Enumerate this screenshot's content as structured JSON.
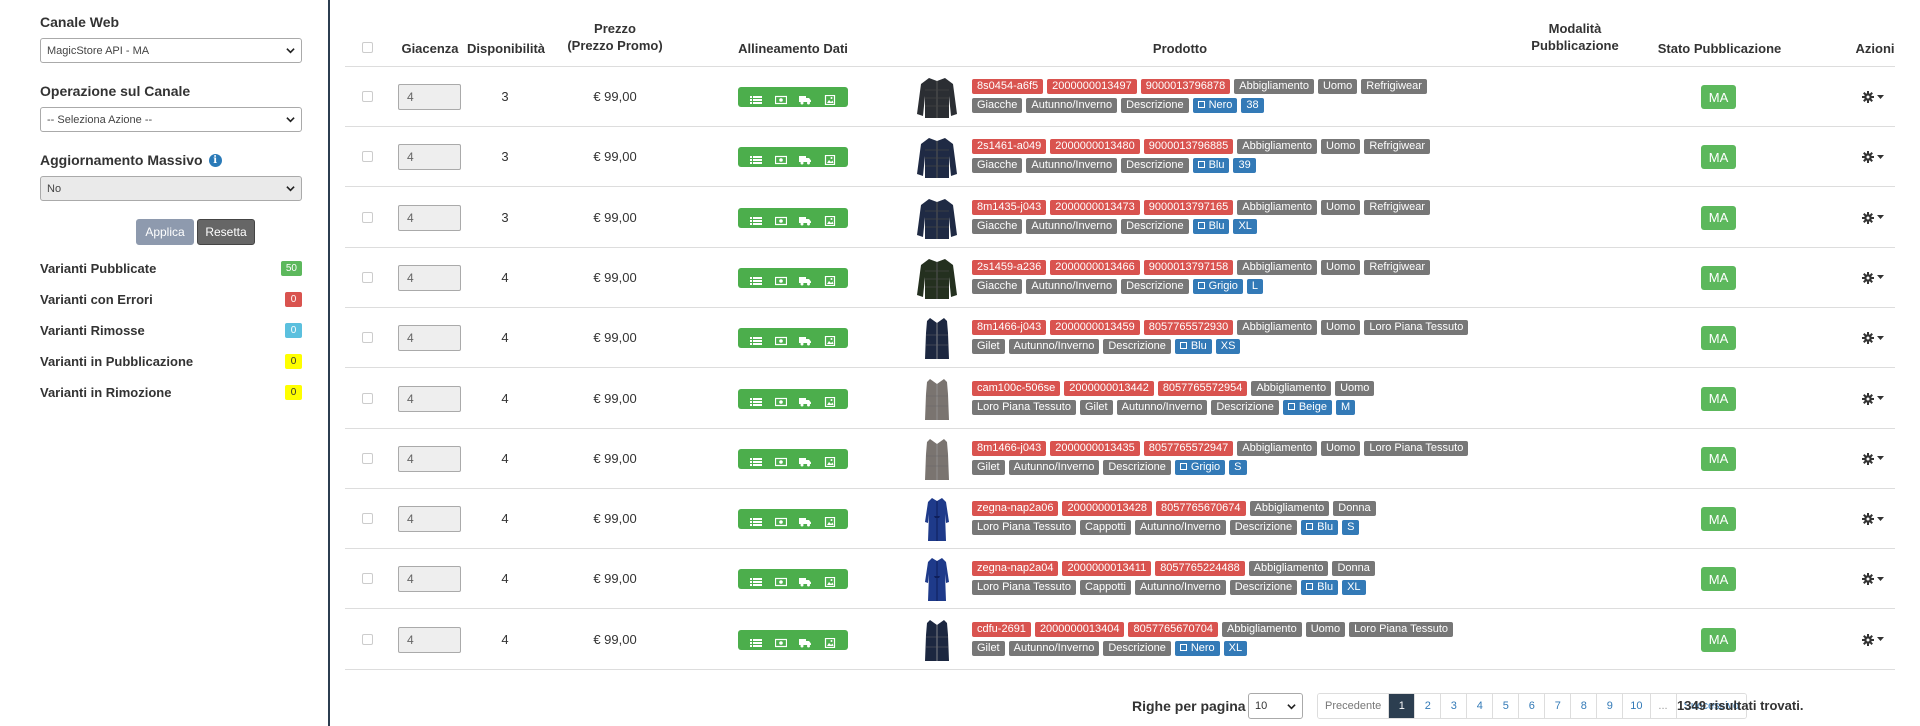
{
  "sidebar": {
    "canale_label": "Canale Web",
    "canale_value": "MagicStore API - MA",
    "operazione_label": "Operazione sul Canale",
    "operazione_value": "-- Seleziona Azione --",
    "aggiornamento_label": "Aggiornamento Massivo",
    "aggiornamento_value": "No",
    "applica": "Applica",
    "resetta": "Resetta",
    "counters": [
      {
        "label": "Varianti Pubblicate",
        "value": "50",
        "color": "#5cb85c",
        "text": "#fff"
      },
      {
        "label": "Varianti con Errori",
        "value": "0",
        "color": "#d9534f",
        "text": "#fff"
      },
      {
        "label": "Varianti Rimosse",
        "value": "0",
        "color": "#5bc0de",
        "text": "#fff"
      },
      {
        "label": "Varianti in Pubblicazione",
        "value": "0",
        "color": "#ffff00",
        "text": "#333"
      },
      {
        "label": "Varianti in Rimozione",
        "value": "0",
        "color": "#ffff00",
        "text": "#333"
      }
    ]
  },
  "table": {
    "headers": {
      "giacenza": "Giacenza",
      "disponibilita": "Disponibilità",
      "prezzo1": "Prezzo",
      "prezzo2": "(Prezzo Promo)",
      "allineamento": "Allineamento Dati",
      "prodotto": "Prodotto",
      "modalita1": "Modalità",
      "modalita2": "Pubblicazione",
      "stato": "Stato Pubblicazione",
      "azioni": "Azioni"
    },
    "rows": [
      {
        "giacenza": "4",
        "disp": "3",
        "price": "€ 99,00",
        "stato": "MA",
        "img": "jacket-dark",
        "line1": [
          [
            "red",
            "8s0454-a6f5"
          ],
          [
            "red",
            "2000000013497"
          ],
          [
            "red",
            "9000013796878"
          ],
          [
            "grey",
            "Abbigliamento"
          ],
          [
            "grey",
            "Uomo"
          ],
          [
            "grey",
            "Refrigiwear"
          ]
        ],
        "line2": [
          [
            "grey",
            "Giacche"
          ],
          [
            "grey",
            "Autunno/Inverno"
          ],
          [
            "grey",
            "Descrizione"
          ],
          [
            "blue",
            "Nero"
          ],
          [
            "blue",
            "38"
          ]
        ]
      },
      {
        "giacenza": "4",
        "disp": "3",
        "price": "€ 99,00",
        "stato": "MA",
        "img": "jacket-navy",
        "line1": [
          [
            "red",
            "2s1461-a049"
          ],
          [
            "red",
            "2000000013480"
          ],
          [
            "red",
            "9000013796885"
          ],
          [
            "grey",
            "Abbigliamento"
          ],
          [
            "grey",
            "Uomo"
          ],
          [
            "grey",
            "Refrigiwear"
          ]
        ],
        "line2": [
          [
            "grey",
            "Giacche"
          ],
          [
            "grey",
            "Autunno/Inverno"
          ],
          [
            "grey",
            "Descrizione"
          ],
          [
            "blue",
            "Blu"
          ],
          [
            "blue",
            "39"
          ]
        ]
      },
      {
        "giacenza": "4",
        "disp": "3",
        "price": "€ 99,00",
        "stato": "MA",
        "img": "jacket-navy",
        "line1": [
          [
            "red",
            "8m1435-j043"
          ],
          [
            "red",
            "2000000013473"
          ],
          [
            "red",
            "9000013797165"
          ],
          [
            "grey",
            "Abbigliamento"
          ],
          [
            "grey",
            "Uomo"
          ],
          [
            "grey",
            "Refrigiwear"
          ]
        ],
        "line2": [
          [
            "grey",
            "Giacche"
          ],
          [
            "grey",
            "Autunno/Inverno"
          ],
          [
            "grey",
            "Descrizione"
          ],
          [
            "blue",
            "Blu"
          ],
          [
            "blue",
            "XL"
          ]
        ]
      },
      {
        "giacenza": "4",
        "disp": "4",
        "price": "€ 99,00",
        "stato": "MA",
        "img": "jacket-green",
        "line1": [
          [
            "red",
            "2s1459-a236"
          ],
          [
            "red",
            "2000000013466"
          ],
          [
            "red",
            "9000013797158"
          ],
          [
            "grey",
            "Abbigliamento"
          ],
          [
            "grey",
            "Uomo"
          ],
          [
            "grey",
            "Refrigiwear"
          ]
        ],
        "line2": [
          [
            "grey",
            "Giacche"
          ],
          [
            "grey",
            "Autunno/Inverno"
          ],
          [
            "grey",
            "Descrizione"
          ],
          [
            "blue",
            "Grigio"
          ],
          [
            "blue",
            "L"
          ]
        ]
      },
      {
        "giacenza": "4",
        "disp": "4",
        "price": "€ 99,00",
        "stato": "MA",
        "img": "gilet-navy",
        "line1": [
          [
            "red",
            "8m1466-j043"
          ],
          [
            "red",
            "2000000013459"
          ],
          [
            "red",
            "8057765572930"
          ],
          [
            "grey",
            "Abbigliamento"
          ],
          [
            "grey",
            "Uomo"
          ],
          [
            "grey",
            "Loro Piana Tessuto"
          ]
        ],
        "line2": [
          [
            "grey",
            "Gilet"
          ],
          [
            "grey",
            "Autunno/Inverno"
          ],
          [
            "grey",
            "Descrizione"
          ],
          [
            "blue",
            "Blu"
          ],
          [
            "blue",
            "XS"
          ]
        ]
      },
      {
        "giacenza": "4",
        "disp": "4",
        "price": "€ 99,00",
        "stato": "MA",
        "img": "gilet-grey",
        "line1": [
          [
            "red",
            "cam100c-506se"
          ],
          [
            "red",
            "2000000013442"
          ],
          [
            "red",
            "8057765572954"
          ],
          [
            "grey",
            "Abbigliamento"
          ],
          [
            "grey",
            "Uomo"
          ]
        ],
        "line2": [
          [
            "grey",
            "Loro Piana Tessuto"
          ],
          [
            "grey",
            "Gilet"
          ],
          [
            "grey",
            "Autunno/Inverno"
          ],
          [
            "grey",
            "Descrizione"
          ],
          [
            "blue",
            "Beige"
          ],
          [
            "blue",
            "M"
          ]
        ]
      },
      {
        "giacenza": "4",
        "disp": "4",
        "price": "€ 99,00",
        "stato": "MA",
        "img": "gilet-grey",
        "line1": [
          [
            "red",
            "8m1466-j043"
          ],
          [
            "red",
            "2000000013435"
          ],
          [
            "red",
            "8057765572947"
          ],
          [
            "grey",
            "Abbigliamento"
          ],
          [
            "grey",
            "Uomo"
          ],
          [
            "grey",
            "Loro Piana Tessuto"
          ]
        ],
        "line2": [
          [
            "grey",
            "Gilet"
          ],
          [
            "grey",
            "Autunno/Inverno"
          ],
          [
            "grey",
            "Descrizione"
          ],
          [
            "blue",
            "Grigio"
          ],
          [
            "blue",
            "S"
          ]
        ]
      },
      {
        "giacenza": "4",
        "disp": "4",
        "price": "€ 99,00",
        "stato": "MA",
        "img": "coat-blue",
        "line1": [
          [
            "red",
            "zegna-nap2a06"
          ],
          [
            "red",
            "2000000013428"
          ],
          [
            "red",
            "8057765670674"
          ],
          [
            "grey",
            "Abbigliamento"
          ],
          [
            "grey",
            "Donna"
          ]
        ],
        "line2": [
          [
            "grey",
            "Loro Piana Tessuto"
          ],
          [
            "grey",
            "Cappotti"
          ],
          [
            "grey",
            "Autunno/Inverno"
          ],
          [
            "grey",
            "Descrizione"
          ],
          [
            "blue",
            "Blu"
          ],
          [
            "blue",
            "S"
          ]
        ]
      },
      {
        "giacenza": "4",
        "disp": "4",
        "price": "€ 99,00",
        "stato": "MA",
        "img": "coat-blue",
        "line1": [
          [
            "red",
            "zegna-nap2a04"
          ],
          [
            "red",
            "2000000013411"
          ],
          [
            "red",
            "8057765224488"
          ],
          [
            "grey",
            "Abbigliamento"
          ],
          [
            "grey",
            "Donna"
          ]
        ],
        "line2": [
          [
            "grey",
            "Loro Piana Tessuto"
          ],
          [
            "grey",
            "Cappotti"
          ],
          [
            "grey",
            "Autunno/Inverno"
          ],
          [
            "grey",
            "Descrizione"
          ],
          [
            "blue",
            "Blu"
          ],
          [
            "blue",
            "XL"
          ]
        ]
      },
      {
        "giacenza": "4",
        "disp": "4",
        "price": "€ 99,00",
        "stato": "MA",
        "img": "gilet-navy",
        "line1": [
          [
            "red",
            "cdfu-2691"
          ],
          [
            "red",
            "2000000013404"
          ],
          [
            "red",
            "8057765670704"
          ],
          [
            "grey",
            "Abbigliamento"
          ],
          [
            "grey",
            "Uomo"
          ],
          [
            "grey",
            "Loro Piana Tessuto"
          ]
        ],
        "line2": [
          [
            "grey",
            "Gilet"
          ],
          [
            "grey",
            "Autunno/Inverno"
          ],
          [
            "grey",
            "Descrizione"
          ],
          [
            "blue",
            "Nero"
          ],
          [
            "blue",
            "XL"
          ]
        ]
      }
    ]
  },
  "pager": {
    "rows_label": "Righe per pagina",
    "rows_value": "10",
    "prev": "Precedente",
    "pages": [
      "1",
      "2",
      "3",
      "4",
      "5",
      "6",
      "7",
      "8",
      "9",
      "10",
      "..."
    ],
    "active": "1",
    "next": "Successivo",
    "results": "1349 risultati trovati."
  }
}
